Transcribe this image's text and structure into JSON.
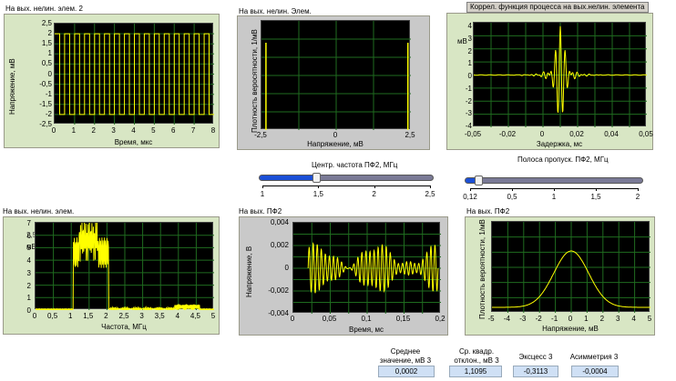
{
  "panels": {
    "p1": {
      "title": "На вых. нелин. элем. 2",
      "xlabel": "Время, мкс",
      "ylabel": "Напряжение, мВ",
      "yticks": [
        "2,5",
        "2",
        "1,5",
        "1",
        "0,5",
        "0",
        "-0,5",
        "-1",
        "-1,5",
        "-2",
        "-2,5"
      ],
      "xticks": [
        "0",
        "1",
        "2",
        "3",
        "4",
        "5",
        "6",
        "7",
        "8"
      ]
    },
    "p2": {
      "title": "На вых. нелин. Элем.",
      "xlabel": "Напряжение, мВ",
      "ylabel": "Плотность веросятности, 1/мВ",
      "xticks": [
        "-2,5",
        "0",
        "2,5"
      ]
    },
    "p3": {
      "title": "Коррел. функция процесса на вых.нелин. элемента",
      "xlabel": "Задержка, мс",
      "ylabel": "мВ",
      "yticks": [
        "4",
        "3",
        "2",
        "1",
        "0",
        "-1",
        "-2",
        "-3",
        "-4"
      ],
      "xticks": [
        "-0,05",
        "-0,02",
        "0",
        "0,02",
        "0,04",
        "0,05"
      ]
    },
    "p4": {
      "title": "На вых. нелин. элем.",
      "xlabel": "Частота, МГц",
      "ylabel": "мВ",
      "ylabel_partial": "0,7\nW(f)",
      "yticks": [
        "7",
        "6",
        "5",
        "4",
        "3",
        "2",
        "1",
        "0"
      ],
      "yticks_top_extra": "2,5",
      "xticks": [
        "0",
        "0,5",
        "1",
        "1,5",
        "2",
        "2,5",
        "3",
        "3,5",
        "4",
        "4,5",
        "5"
      ]
    },
    "p5": {
      "title": "На вых. ПФ2",
      "xlabel": "Время, мс",
      "ylabel": "Напряжение, В",
      "yticks": [
        "0,004",
        "0,002",
        "0",
        "-0,002",
        "-0,004"
      ],
      "xticks": [
        "0",
        "0,05",
        "0,1",
        "0,15",
        "0,2"
      ]
    },
    "p6": {
      "title": "На вых. ПФ2",
      "xlabel": "Напряжение, мВ",
      "ylabel": "Плотность вероятности, 1/мВ",
      "xticks": [
        "-5",
        "-4",
        "-3",
        "-2",
        "-1",
        "0",
        "1",
        "2",
        "3",
        "4",
        "5"
      ]
    }
  },
  "sliders": {
    "s1": {
      "title": "Центр. частота ПФ2, МГц",
      "ticks": [
        "1",
        "1,5",
        "2",
        "2,5"
      ],
      "value": 1.5,
      "min": 1,
      "max": 2.5
    },
    "s2": {
      "title": "Полоса пропуск. ПФ2, МГц",
      "ticks": [
        "0,12",
        "0,5",
        "1",
        "1,5",
        "2"
      ],
      "value": 0.12,
      "min": 0.12,
      "max": 2
    }
  },
  "stats": [
    {
      "label": "Среднее\nзначение, мВ 3",
      "value": "0,0002"
    },
    {
      "label": "Ср. квадр.\nотклон., мВ 3",
      "value": "1,1095"
    },
    {
      "label": "Эксцесс 3",
      "value": "-0,3113"
    },
    {
      "label": "Асимметрия 3",
      "value": "-0,0004"
    }
  ],
  "colors": {
    "trace": "#ffff00",
    "grid": "#1f6b1f",
    "plot_bg": "#000000",
    "slider_fill": "#1b4fd6"
  }
}
